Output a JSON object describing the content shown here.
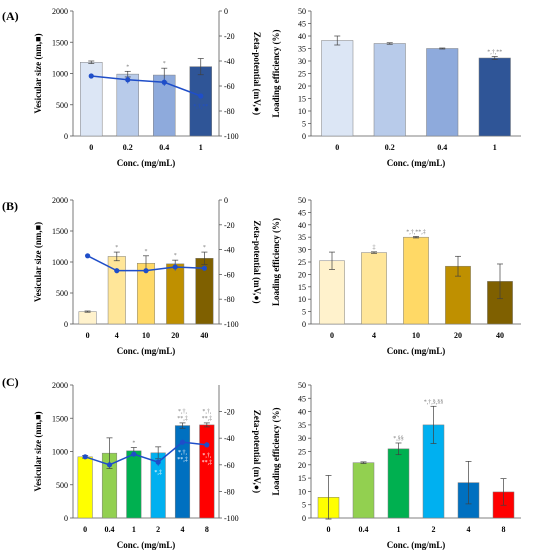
{
  "figure": {
    "panel_labels": [
      "(A)",
      "(B)",
      "(C)"
    ]
  },
  "chart_data": [
    {
      "type": "bar",
      "panel": "(A)",
      "categories": [
        "0",
        "0.2",
        "0.4",
        "1"
      ],
      "values": [
        1180,
        990,
        975,
        1110
      ],
      "errors": [
        20,
        45,
        110,
        130
      ],
      "bar_colors": [
        "#dce6f5",
        "#b8cbea",
        "#8eaadc",
        "#2f5597"
      ],
      "bar_annotations": [
        "",
        "*",
        "*",
        ""
      ],
      "line_series": {
        "values": [
          -52,
          -55,
          -57,
          -68
        ],
        "errors": [
          1,
          3,
          3,
          2
        ],
        "color": "#1f4ec9",
        "annotations": [
          "",
          "",
          "",
          "*,†,**"
        ]
      },
      "xlabel": "Conc. (mg/mL)",
      "ylabel": "Vesicular size (nm,■)",
      "ylabel_right": "Zeta-potential (mV,●)",
      "ylim": [
        0,
        2000
      ],
      "yticks": [
        0,
        500,
        1000,
        1500,
        2000
      ],
      "ylim_right": [
        -100,
        0
      ],
      "yticks_right": [
        0,
        -20,
        -40,
        -60,
        -80,
        -100
      ]
    },
    {
      "type": "bar",
      "panel": "(A)",
      "categories": [
        "0",
        "0.2",
        "0.4",
        "1"
      ],
      "values": [
        38.2,
        37,
        35,
        31.2
      ],
      "errors": [
        1.8,
        0.3,
        0.2,
        0.6
      ],
      "bar_colors": [
        "#dce6f5",
        "#b8cbea",
        "#8eaadc",
        "#2f5597"
      ],
      "bar_annotations": [
        "",
        "",
        "",
        "*,†,**"
      ],
      "xlabel": "Conc. (mg/mL)",
      "ylabel": "Loading efficiency  (%)",
      "ylim": [
        0,
        50
      ],
      "yticks": [
        0,
        5,
        10,
        15,
        20,
        25,
        30,
        35,
        40,
        45,
        50
      ]
    },
    {
      "type": "bar",
      "panel": "(B)",
      "categories": [
        "0",
        "4",
        "10",
        "20",
        "40"
      ],
      "values": [
        200,
        1090,
        980,
        970,
        1060
      ],
      "errors": [
        10,
        70,
        120,
        60,
        100
      ],
      "bar_colors": [
        "#fff2cc",
        "#ffe699",
        "#ffd966",
        "#bf9000",
        "#7f6000"
      ],
      "bar_annotations": [
        "",
        "*",
        "*",
        "*",
        "*"
      ],
      "line_series": {
        "values": [
          -45,
          -57,
          -57,
          -54,
          -55
        ],
        "errors": [
          1,
          2,
          2,
          3,
          2
        ],
        "color": "#1f4ec9",
        "annotations": [
          "",
          "",
          "",
          "",
          ""
        ]
      },
      "xlabel": "Conc. (mg/mL)",
      "ylabel": "Vesicular size (nm,■)",
      "ylabel_right": "Zeta-potential (mV,●)",
      "ylim": [
        0,
        2000
      ],
      "yticks": [
        0,
        500,
        1000,
        1500,
        2000
      ],
      "ylim_right": [
        -100,
        0
      ],
      "yticks_right": [
        0,
        -20,
        -40,
        -60,
        -80,
        -100
      ]
    },
    {
      "type": "bar",
      "panel": "(B)",
      "categories": [
        "0",
        "4",
        "10",
        "20",
        "40"
      ],
      "values": [
        25.5,
        28.8,
        35,
        23.3,
        17.2
      ],
      "errors": [
        3.5,
        0.3,
        0.3,
        4,
        7
      ],
      "bar_colors": [
        "#fff2cc",
        "#ffe699",
        "#ffd966",
        "#bf9000",
        "#7f6000"
      ],
      "bar_annotations": [
        "",
        "‡",
        "*,†,**,‡",
        "",
        ""
      ],
      "xlabel": "Conc. (mg/mL)",
      "ylabel": "Loading efficiency  (%)",
      "ylim": [
        0,
        50
      ],
      "yticks": [
        0,
        5,
        10,
        15,
        20,
        25,
        30,
        35,
        40,
        45,
        50
      ]
    },
    {
      "type": "bar",
      "panel": "(C)",
      "categories": [
        "0",
        "0.4",
        "1",
        "2",
        "4",
        "8"
      ],
      "values": [
        920,
        975,
        1010,
        980,
        1390,
        1400
      ],
      "errors": [
        20,
        230,
        50,
        90,
        40,
        30
      ],
      "bar_colors": [
        "#ffff00",
        "#92d050",
        "#00b050",
        "#00b0f0",
        "#0070c0",
        "#ff0000"
      ],
      "bar_annotations": [
        "",
        "",
        "*",
        "",
        "*,†,\n**,‡",
        "*,†,\n**,‡"
      ],
      "line_series": {
        "values": [
          -54,
          -60,
          -52,
          -58,
          -43,
          -45
        ],
        "errors": [
          1,
          2,
          1,
          3,
          2,
          2
        ],
        "color": "#1f4ec9",
        "annotations": [
          "",
          "",
          "",
          "*,‡",
          "*,†,\n**,‡",
          "*,†,\n**,‡"
        ]
      },
      "xlabel": "Conc. (mg/mL)",
      "ylabel": "Vesicular size (nm,■)",
      "ylabel_right": "Zeta-potential (mV,●)",
      "ylim": [
        0,
        2000
      ],
      "yticks": [
        0,
        500,
        1000,
        1500,
        2000
      ],
      "ylim_right": [
        -100,
        0
      ],
      "yticks_right": [
        -20,
        -40,
        -60,
        -80,
        -100
      ]
    },
    {
      "type": "bar",
      "panel": "(C)",
      "categories": [
        "0",
        "0.4",
        "1",
        "2",
        "4",
        "8"
      ],
      "values": [
        7.8,
        20.8,
        26,
        35,
        13.3,
        9.8
      ],
      "errors": [
        8.2,
        0.3,
        2.2,
        7,
        8,
        5
      ],
      "bar_colors": [
        "#ffff00",
        "#92d050",
        "#00b050",
        "#00b0f0",
        "#0070c0",
        "#ff0000"
      ],
      "bar_annotations": [
        "",
        "",
        "*,§§",
        "*,†,§,§§",
        "",
        ""
      ],
      "xlabel": "Conc. (mg/mL)",
      "ylabel": "Loading efficiency  (%)",
      "ylim": [
        0,
        50
      ],
      "yticks": [
        0,
        5,
        10,
        15,
        20,
        25,
        30,
        35,
        40,
        45,
        50
      ]
    }
  ]
}
